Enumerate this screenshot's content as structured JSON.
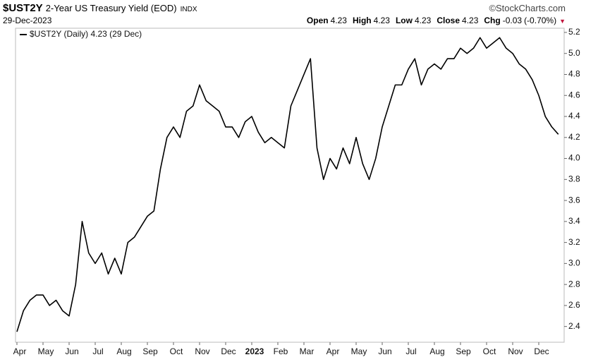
{
  "chart_data": {
    "type": "line",
    "symbol": "$UST2Y",
    "title": "2-Year US Treasury Yield (EOD)",
    "exchange": "INDX",
    "credit": "©StockCharts.com",
    "date": "29-Dec-2023",
    "stats": [
      {
        "name": "Open",
        "value": 4.23
      },
      {
        "name": "High",
        "value": 4.23
      },
      {
        "name": "Low",
        "value": 4.23
      },
      {
        "name": "Close",
        "value": 4.23
      },
      {
        "name": "Chg",
        "value": -0.03
      }
    ],
    "change_percent": {
      "value": -0.7,
      "label": "(-0.70%)"
    },
    "categories": [
      "Apr",
      null,
      null,
      null,
      "May",
      null,
      null,
      null,
      "Jun",
      null,
      null,
      null,
      "Jul",
      null,
      null,
      null,
      "Aug",
      null,
      null,
      null,
      "Sep",
      null,
      null,
      null,
      "Oct",
      null,
      null,
      null,
      "Nov",
      null,
      null,
      null,
      "Dec",
      null,
      null,
      null,
      "2023",
      null,
      null,
      null,
      "Feb",
      null,
      null,
      null,
      "Mar",
      null,
      null,
      null,
      "Apr",
      null,
      null,
      null,
      "May",
      null,
      null,
      null,
      "Jun",
      null,
      null,
      null,
      "Jul",
      null,
      null,
      null,
      "Aug",
      null,
      null,
      null,
      "Sep",
      null,
      null,
      null,
      "Oct",
      null,
      null,
      null,
      "Nov",
      null,
      null,
      null,
      "Dec",
      null,
      null,
      null
    ],
    "series": [
      {
        "name": "$UST2Y (Daily) 4.23 (29 Dec)",
        "color": "#000000",
        "values": [
          2.35,
          2.55,
          2.65,
          2.7,
          2.7,
          2.6,
          2.65,
          2.55,
          2.5,
          2.8,
          3.4,
          3.1,
          3.0,
          3.1,
          2.9,
          3.05,
          2.9,
          3.2,
          3.25,
          3.35,
          3.45,
          3.5,
          3.9,
          4.2,
          4.3,
          4.2,
          4.45,
          4.5,
          4.7,
          4.55,
          4.5,
          4.45,
          4.3,
          4.3,
          4.2,
          4.35,
          4.4,
          4.25,
          4.15,
          4.2,
          4.15,
          4.1,
          4.5,
          4.65,
          4.8,
          4.95,
          4.1,
          3.8,
          4.0,
          3.9,
          4.1,
          3.95,
          4.2,
          3.95,
          3.8,
          4.0,
          4.3,
          4.5,
          4.7,
          4.7,
          4.85,
          4.95,
          4.7,
          4.85,
          4.9,
          4.85,
          4.95,
          4.95,
          5.05,
          5.0,
          5.05,
          5.15,
          5.05,
          5.1,
          5.15,
          5.05,
          5.0,
          4.9,
          4.85,
          4.75,
          4.6,
          4.4,
          4.3,
          4.23
        ]
      }
    ],
    "ylim": [
      2.25,
      5.24
    ],
    "yticks": [
      2.4,
      2.6,
      2.8,
      {
        "value": 3,
        "label": "3.0"
      },
      3.2,
      3.4,
      3.6,
      3.8,
      {
        "value": 4,
        "label": "4.0"
      },
      4.2,
      4.4,
      4.6,
      4.8,
      {
        "value": 5,
        "label": "5.0"
      },
      5.2
    ],
    "grid": false
  }
}
